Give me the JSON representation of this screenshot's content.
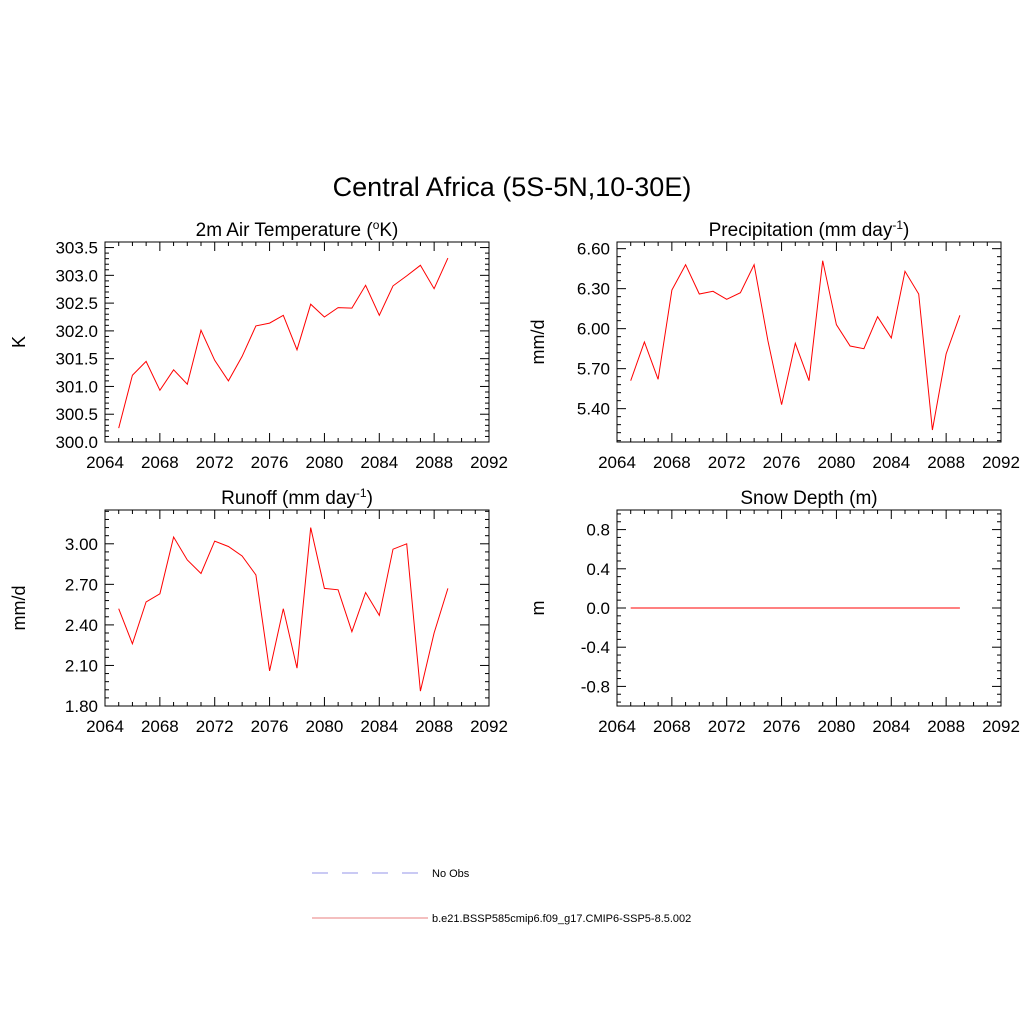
{
  "figure": {
    "title": "Central Africa (5S-5N,10-30E)"
  },
  "legend": {
    "position": "bottom-center",
    "entries": [
      {
        "label": "No Obs",
        "color": "#aaaaee",
        "dash": "dashed"
      },
      {
        "label": "b.e21.BSSP585cmip6.f09_g17.CMIP6-SSP5-8.5.002",
        "color": "#ee9999",
        "dash": "solid"
      }
    ]
  },
  "chart_data": [
    {
      "id": "temperature",
      "type": "line",
      "title": "2m Air Temperature (",
      "title_sup": "o",
      "title_end": "K)",
      "ylabel": "K",
      "xlim": [
        2064,
        2092
      ],
      "ylim": [
        300.0,
        303.6
      ],
      "xticks": [
        2064,
        2068,
        2072,
        2076,
        2080,
        2084,
        2088,
        2092
      ],
      "xtick_labels": [
        "2064",
        "2068",
        "2072",
        "2076",
        "2080",
        "2084",
        "2088",
        "2092"
      ],
      "yticks": [
        300.0,
        300.5,
        301.0,
        301.5,
        302.0,
        302.5,
        303.0,
        303.5
      ],
      "ytick_labels": [
        "300.0",
        "300.5",
        "301.0",
        "301.5",
        "302.0",
        "302.5",
        "303.0",
        "303.5"
      ],
      "color": "#ff0000",
      "series": [
        {
          "x": [
            2065,
            2066,
            2067,
            2068,
            2069,
            2070,
            2071,
            2072,
            2073,
            2074,
            2075,
            2076,
            2077,
            2078,
            2079,
            2080,
            2081,
            2082,
            2083,
            2084,
            2085,
            2086,
            2087,
            2088,
            2089
          ],
          "values": [
            300.25,
            301.2,
            301.45,
            300.93,
            301.3,
            301.04,
            302.01,
            301.47,
            301.1,
            301.54,
            302.09,
            302.14,
            302.28,
            301.66,
            302.48,
            302.25,
            302.42,
            302.41,
            302.82,
            302.28,
            302.81,
            302.99,
            303.18,
            302.76,
            303.31
          ]
        }
      ]
    },
    {
      "id": "precipitation",
      "type": "line",
      "title": "Precipitation (mm day",
      "title_sup": "-1",
      "title_end": ")",
      "ylabel": "mm/d",
      "xlim": [
        2064,
        2092
      ],
      "ylim": [
        5.15,
        6.65
      ],
      "xticks": [
        2064,
        2068,
        2072,
        2076,
        2080,
        2084,
        2088,
        2092
      ],
      "xtick_labels": [
        "2064",
        "2068",
        "2072",
        "2076",
        "2080",
        "2084",
        "2088",
        "2092"
      ],
      "yticks": [
        5.4,
        5.7,
        6.0,
        6.3,
        6.6
      ],
      "ytick_labels": [
        "5.40",
        "5.70",
        "6.00",
        "6.30",
        "6.60"
      ],
      "color": "#ff0000",
      "series": [
        {
          "x": [
            2065,
            2066,
            2067,
            2068,
            2069,
            2070,
            2071,
            2072,
            2073,
            2074,
            2075,
            2076,
            2077,
            2078,
            2079,
            2080,
            2081,
            2082,
            2083,
            2084,
            2085,
            2086,
            2087,
            2088,
            2089
          ],
          "values": [
            5.61,
            5.9,
            5.62,
            6.29,
            6.48,
            6.26,
            6.28,
            6.22,
            6.27,
            6.48,
            5.91,
            5.43,
            5.89,
            5.61,
            6.51,
            6.03,
            5.87,
            5.85,
            6.09,
            5.93,
            6.43,
            6.26,
            5.24,
            5.81,
            6.1
          ]
        }
      ]
    },
    {
      "id": "runoff",
      "type": "line",
      "title": "Runoff (mm day",
      "title_sup": "-1",
      "title_end": ")",
      "ylabel": "mm/d",
      "xlim": [
        2064,
        2092
      ],
      "ylim": [
        1.8,
        3.25
      ],
      "xticks": [
        2064,
        2068,
        2072,
        2076,
        2080,
        2084,
        2088,
        2092
      ],
      "xtick_labels": [
        "2064",
        "2068",
        "2072",
        "2076",
        "2080",
        "2084",
        "2088",
        "2092"
      ],
      "yticks": [
        1.8,
        2.1,
        2.4,
        2.7,
        3.0
      ],
      "ytick_labels": [
        "1.80",
        "2.10",
        "2.40",
        "2.70",
        "3.00"
      ],
      "color": "#ff0000",
      "series": [
        {
          "x": [
            2065,
            2066,
            2067,
            2068,
            2069,
            2070,
            2071,
            2072,
            2073,
            2074,
            2075,
            2076,
            2077,
            2078,
            2079,
            2080,
            2081,
            2082,
            2083,
            2084,
            2085,
            2086,
            2087,
            2088,
            2089
          ],
          "values": [
            2.52,
            2.26,
            2.57,
            2.63,
            3.05,
            2.88,
            2.78,
            3.02,
            2.98,
            2.91,
            2.77,
            2.06,
            2.52,
            2.08,
            3.12,
            2.67,
            2.66,
            2.35,
            2.64,
            2.47,
            2.96,
            3.0,
            1.91,
            2.34,
            2.67
          ]
        }
      ]
    },
    {
      "id": "snowdepth",
      "type": "line",
      "title": "Snow Depth (m)",
      "title_sup": "",
      "title_end": "",
      "ylabel": "m",
      "xlim": [
        2064,
        2092
      ],
      "ylim": [
        -1.0,
        1.0
      ],
      "xticks": [
        2064,
        2068,
        2072,
        2076,
        2080,
        2084,
        2088,
        2092
      ],
      "xtick_labels": [
        "2064",
        "2068",
        "2072",
        "2076",
        "2080",
        "2084",
        "2088",
        "2092"
      ],
      "yticks": [
        -0.8,
        -0.4,
        0.0,
        0.4,
        0.8
      ],
      "ytick_labels": [
        "-0.8",
        "-0.4",
        "0.0",
        "0.4",
        "0.8"
      ],
      "color": "#ff0000",
      "series": [
        {
          "x": [
            2065,
            2066,
            2067,
            2068,
            2069,
            2070,
            2071,
            2072,
            2073,
            2074,
            2075,
            2076,
            2077,
            2078,
            2079,
            2080,
            2081,
            2082,
            2083,
            2084,
            2085,
            2086,
            2087,
            2088,
            2089
          ],
          "values": [
            0,
            0,
            0,
            0,
            0,
            0,
            0,
            0,
            0,
            0,
            0,
            0,
            0,
            0,
            0,
            0,
            0,
            0,
            0,
            0,
            0,
            0,
            0,
            0,
            0
          ]
        }
      ]
    }
  ]
}
